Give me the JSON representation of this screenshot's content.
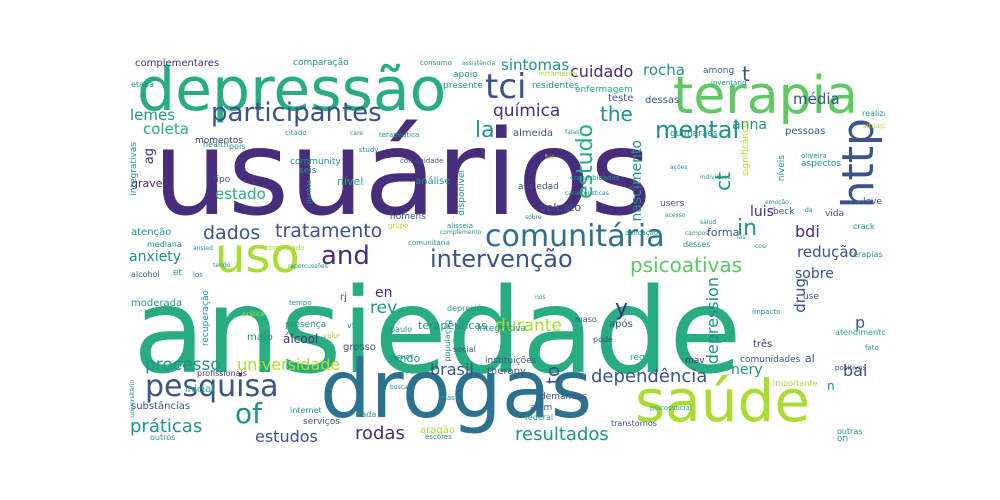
{
  "colors": {
    "dark_purple": "#472d7b",
    "navy": "#3b528b",
    "blue": "#2c728e",
    "teal": "#21918c",
    "green": "#27ad81",
    "light_green": "#5ec962",
    "lime": "#aadc32",
    "yellow": "#fde725"
  },
  "words": [
    {
      "text": "usuários",
      "color": "dark_purple",
      "vertical": false
    },
    {
      "text": "ansiedade",
      "color": "green",
      "vertical": false
    },
    {
      "text": "drogas",
      "color": "blue",
      "vertical": false
    },
    {
      "text": "depressão",
      "color": "green",
      "vertical": false
    },
    {
      "text": "terapia",
      "color": "light_green",
      "vertical": false
    },
    {
      "text": "saúde",
      "color": "lime",
      "vertical": false
    },
    {
      "text": "uso",
      "color": "lime",
      "vertical": false
    },
    {
      "text": "http",
      "color": "navy",
      "vertical": true
    },
    {
      "text": "comunitária",
      "color": "blue",
      "vertical": false
    },
    {
      "text": "participantes",
      "color": "navy",
      "vertical": false
    },
    {
      "text": "pesquisa",
      "color": "navy",
      "vertical": false
    },
    {
      "text": "tci",
      "color": "navy",
      "vertical": false
    },
    {
      "text": "and",
      "color": "dark_purple",
      "vertical": false
    },
    {
      "text": "mental",
      "color": "teal",
      "vertical": false
    },
    {
      "text": "intervenção",
      "color": "navy",
      "vertical": false
    },
    {
      "text": "psicoativas",
      "color": "light_green",
      "vertical": false
    },
    {
      "text": "of",
      "color": "teal",
      "vertical": false
    },
    {
      "text": "tratamento",
      "color": "navy",
      "vertical": false
    },
    {
      "text": "dados",
      "color": "navy",
      "vertical": false
    },
    {
      "text": "dependência",
      "color": "navy",
      "vertical": false
    },
    {
      "text": "processo",
      "color": "teal",
      "vertical": false
    },
    {
      "text": "universidade",
      "color": "lime",
      "vertical": false
    },
    {
      "text": "práticas",
      "color": "teal",
      "vertical": false
    },
    {
      "text": "rodas",
      "color": "dark_purple",
      "vertical": false
    },
    {
      "text": "resultados",
      "color": "teal",
      "vertical": false
    },
    {
      "text": "estudos",
      "color": "navy",
      "vertical": false
    },
    {
      "text": "brasil",
      "color": "navy",
      "vertical": false
    },
    {
      "text": "rev",
      "color": "teal",
      "vertical": false
    },
    {
      "text": "en",
      "color": "dark_purple",
      "vertical": false
    },
    {
      "text": "the",
      "color": "teal",
      "vertical": false
    },
    {
      "text": "la",
      "color": "teal",
      "vertical": false
    },
    {
      "text": "in",
      "color": "teal",
      "vertical": false
    },
    {
      "text": "ct",
      "color": "teal",
      "vertical": true
    },
    {
      "text": "estudo",
      "color": "green",
      "vertical": true
    },
    {
      "text": "química",
      "color": "dark_purple",
      "vertical": false
    },
    {
      "text": "cuidado",
      "color": "dark_purple",
      "vertical": false
    },
    {
      "text": "rocha",
      "color": "teal",
      "vertical": false
    },
    {
      "text": "sintomas",
      "color": "teal",
      "vertical": false
    },
    {
      "text": "t",
      "color": "navy",
      "vertical": false
    },
    {
      "text": "média",
      "color": "navy",
      "vertical": false
    },
    {
      "text": "anna",
      "color": "teal",
      "vertical": false
    },
    {
      "text": "coleta",
      "color": "green",
      "vertical": false
    },
    {
      "text": "lemes",
      "color": "teal",
      "vertical": false
    },
    {
      "text": "estado",
      "color": "green",
      "vertical": false
    },
    {
      "text": "anxiety",
      "color": "teal",
      "vertical": false
    },
    {
      "text": "bdi",
      "color": "dark_purple",
      "vertical": false
    },
    {
      "text": "redução",
      "color": "navy",
      "vertical": false
    },
    {
      "text": "sobre",
      "color": "navy",
      "vertical": false
    },
    {
      "text": "bai",
      "color": "navy",
      "vertical": false
    },
    {
      "text": "nery",
      "color": "teal",
      "vertical": false
    },
    {
      "text": "durante",
      "color": "lime",
      "vertical": false
    },
    {
      "text": "to",
      "color": "navy",
      "vertical": true
    },
    {
      "text": "y",
      "color": "dark_purple",
      "vertical": false
    },
    {
      "text": "p",
      "color": "navy",
      "vertical": false
    },
    {
      "text": "drug",
      "color": "navy",
      "vertical": true
    },
    {
      "text": "depression",
      "color": "teal",
      "vertical": true
    },
    {
      "text": "nascimento",
      "color": "teal",
      "vertical": true
    },
    {
      "text": "luis",
      "color": "dark_purple",
      "vertical": false
    },
    {
      "text": "volpato",
      "color": "navy",
      "vertical": false
    },
    {
      "text": "grave",
      "color": "dark_purple",
      "vertical": false
    },
    {
      "text": "ag",
      "color": "dark_purple",
      "vertical": true
    },
    {
      "text": "complementares",
      "color": "dark_purple",
      "vertical": false
    },
    {
      "text": "comparação",
      "color": "teal",
      "vertical": false
    },
    {
      "text": "momentos",
      "color": "dark_purple",
      "vertical": false
    },
    {
      "text": "análise",
      "color": "teal",
      "vertical": false
    },
    {
      "text": "almeida",
      "color": "navy",
      "vertical": false
    },
    {
      "text": "guimarães",
      "color": "teal",
      "vertical": false
    },
    {
      "text": "pessoas",
      "color": "navy",
      "vertical": false
    },
    {
      "text": "três",
      "color": "dark_purple",
      "vertical": false
    },
    {
      "text": "após",
      "color": "navy",
      "vertical": false
    },
    {
      "text": "sendo",
      "color": "teal",
      "vertical": false
    },
    {
      "text": "álcool",
      "color": "dark_purple",
      "vertical": false
    },
    {
      "text": "atenção",
      "color": "teal",
      "vertical": false
    },
    {
      "text": "moderada",
      "color": "teal",
      "vertical": false
    },
    {
      "text": "substâncias",
      "color": "navy",
      "vertical": false
    },
    {
      "text": "inicial",
      "color": "green",
      "vertical": false
    },
    {
      "text": "serviços",
      "color": "navy",
      "vertical": false
    },
    {
      "text": "terapêuticas",
      "color": "teal",
      "vertical": false
    },
    {
      "text": "integrativa",
      "color": "teal",
      "vertical": false
    },
    {
      "text": "therapy",
      "color": "navy",
      "vertical": false
    },
    {
      "text": "aragão",
      "color": "lime",
      "vertical": false
    },
    {
      "text": "grosso",
      "color": "navy",
      "vertical": false
    },
    {
      "text": "mato",
      "color": "teal",
      "vertical": false
    },
    {
      "text": "comunidades",
      "color": "navy",
      "vertical": false
    },
    {
      "text": "al",
      "color": "navy",
      "vertical": false
    },
    {
      "text": "forma",
      "color": "navy",
      "vertical": false
    },
    {
      "text": "nível",
      "color": "green",
      "vertical": false
    },
    {
      "text": "ansiedad",
      "color": "navy",
      "vertical": false
    },
    {
      "text": "users",
      "color": "navy",
      "vertical": false
    },
    {
      "text": "homens",
      "color": "navy",
      "vertical": false
    },
    {
      "text": "community",
      "color": "teal",
      "vertical": false
    },
    {
      "text": "teste",
      "color": "navy",
      "vertical": false
    },
    {
      "text": "dessas",
      "color": "navy",
      "vertical": false
    },
    {
      "text": "among",
      "color": "navy",
      "vertical": false
    },
    {
      "text": "residentes",
      "color": "teal",
      "vertical": false
    },
    {
      "text": "presente",
      "color": "teal",
      "vertical": false
    },
    {
      "text": "apoio",
      "color": "teal",
      "vertical": false
    },
    {
      "text": "enfermagem",
      "color": "green",
      "vertical": false
    },
    {
      "text": "seis",
      "color": "teal",
      "vertical": false
    },
    {
      "text": "tipo",
      "color": "navy",
      "vertical": false
    },
    {
      "text": "pois",
      "color": "teal",
      "vertical": false
    },
    {
      "text": "health",
      "color": "teal",
      "vertical": false
    },
    {
      "text": "integrativas",
      "color": "teal",
      "vertical": true
    },
    {
      "text": "etapa",
      "color": "teal",
      "vertical": false
    },
    {
      "text": "et",
      "color": "teal",
      "vertical": false
    },
    {
      "text": "alcohol",
      "color": "navy",
      "vertical": false
    },
    {
      "text": "mediana",
      "color": "teal",
      "vertical": false
    },
    {
      "text": "recuperação",
      "color": "teal",
      "vertical": true
    },
    {
      "text": "rj",
      "color": "navy",
      "vertical": false
    },
    {
      "text": "vf",
      "color": "teal",
      "vertical": false
    },
    {
      "text": "presença",
      "color": "teal",
      "vertical": false
    },
    {
      "text": "mav",
      "color": "dark_purple",
      "vertical": false
    },
    {
      "text": "região",
      "color": "green",
      "vertical": false
    },
    {
      "text": "demandas",
      "color": "navy",
      "vertical": false
    },
    {
      "text": "instituições",
      "color": "navy",
      "vertical": false
    },
    {
      "text": "além",
      "color": "navy",
      "vertical": false
    },
    {
      "text": "federal",
      "color": "teal",
      "vertical": false
    },
    {
      "text": "transtornos",
      "color": "navy",
      "vertical": false
    },
    {
      "text": "cada",
      "color": "teal",
      "vertical": false
    },
    {
      "text": "internet",
      "color": "teal",
      "vertical": false
    },
    {
      "text": "outros",
      "color": "teal",
      "vertical": false
    },
    {
      "text": "profissionais",
      "color": "dark_purple",
      "vertical": false
    },
    {
      "text": "social",
      "color": "navy",
      "vertical": false
    },
    {
      "text": "pode",
      "color": "navy",
      "vertical": false
    },
    {
      "text": "maso",
      "color": "navy",
      "vertical": false
    },
    {
      "text": "atendimento",
      "color": "green",
      "vertical": false
    },
    {
      "text": "importante",
      "color": "lime",
      "vertical": false
    },
    {
      "text": "outras",
      "color": "teal",
      "vertical": false
    },
    {
      "text": "n",
      "color": "teal",
      "vertical": false
    },
    {
      "text": "on",
      "color": "teal",
      "vertical": false
    },
    {
      "text": "leve",
      "color": "navy",
      "vertical": false
    },
    {
      "text": "beck",
      "color": "navy",
      "vertical": false
    },
    {
      "text": "vida",
      "color": "navy",
      "vertical": false
    },
    {
      "text": "crack",
      "color": "teal",
      "vertical": false
    },
    {
      "text": "terapias",
      "color": "teal",
      "vertical": false
    },
    {
      "text": "desses",
      "color": "teal",
      "vertical": false
    },
    {
      "text": "use",
      "color": "navy",
      "vertical": false
    },
    {
      "text": "aspectos",
      "color": "teal",
      "vertical": false
    },
    {
      "text": "níveis",
      "color": "teal",
      "vertical": true
    },
    {
      "text": "significância",
      "color": "lime",
      "vertical": true
    },
    {
      "text": "realizado",
      "color": "teal",
      "vertical": false
    },
    {
      "text": "inventário",
      "color": "teal",
      "vertical": false
    },
    {
      "text": "situação",
      "color": "lime",
      "vertical": false
    },
    {
      "text": "consumo",
      "color": "teal",
      "vertical": false
    },
    {
      "text": "assistência",
      "color": "teal",
      "vertical": false
    },
    {
      "text": "depresión",
      "color": "teal",
      "vertical": false
    },
    {
      "text": "impacto",
      "color": "teal",
      "vertical": false
    },
    {
      "text": "fato",
      "color": "teal",
      "vertical": false
    },
    {
      "text": "positivos",
      "color": "navy",
      "vertical": false
    },
    {
      "text": "aplicação",
      "color": "teal",
      "vertical": false
    },
    {
      "text": "oliveira",
      "color": "teal",
      "vertical": false
    },
    {
      "text": "comorbidades",
      "color": "teal",
      "vertical": false
    },
    {
      "text": "características",
      "color": "teal",
      "vertical": false
    },
    {
      "text": "comunidade",
      "color": "navy",
      "vertical": false
    },
    {
      "text": "disponível",
      "color": "teal",
      "vertical": true
    },
    {
      "text": "citado",
      "color": "teal",
      "vertical": false
    },
    {
      "text": "terapêutica",
      "color": "teal",
      "vertical": false
    },
    {
      "text": "study",
      "color": "teal",
      "vertical": false
    },
    {
      "text": "comunitaria",
      "color": "teal",
      "vertical": false
    },
    {
      "text": "paulo",
      "color": "teal",
      "vertical": false
    },
    {
      "text": "população",
      "color": "teal",
      "vertical": true
    },
    {
      "text": "psicossocial",
      "color": "green",
      "vertical": false
    },
    {
      "text": "escores",
      "color": "teal",
      "vertical": false
    },
    {
      "text": "universitário",
      "color": "teal",
      "vertical": true
    },
    {
      "text": "tempo",
      "color": "teal",
      "vertical": false
    },
    {
      "text": "prática",
      "color": "lime",
      "vertical": false
    },
    {
      "text": "valor",
      "color": "lime",
      "vertical": false
    },
    {
      "text": "repercussões",
      "color": "teal",
      "vertical": false
    },
    {
      "text": "ferramenta",
      "color": "lime",
      "vertical": false
    },
    {
      "text": "indivíduos",
      "color": "teal",
      "vertical": false
    },
    {
      "text": "ações",
      "color": "teal",
      "vertical": false
    },
    {
      "text": "campos",
      "color": "teal",
      "vertical": false
    },
    {
      "text": "acesso",
      "color": "teal",
      "vertical": false
    },
    {
      "text": "care",
      "color": "teal",
      "vertical": false
    },
    {
      "text": "pontos",
      "color": "teal",
      "vertical": true
    },
    {
      "text": "grupo",
      "color": "lime",
      "vertical": false
    },
    {
      "text": "sobre",
      "color": "teal",
      "vertical": false
    },
    {
      "text": "alisseia",
      "color": "teal",
      "vertical": false
    },
    {
      "text": "complemento",
      "color": "teal",
      "vertical": false
    },
    {
      "text": "assim",
      "color": "teal",
      "vertical": false
    },
    {
      "text": "mas",
      "color": "teal",
      "vertical": false
    },
    {
      "text": "busca",
      "color": "teal",
      "vertical": false
    },
    {
      "text": "salud",
      "color": "teal",
      "vertical": false
    },
    {
      "text": "tendo",
      "color": "teal",
      "vertical": false
    },
    {
      "text": "los",
      "color": "teal",
      "vertical": false
    },
    {
      "text": "ansied",
      "color": "teal",
      "vertical": false
    },
    {
      "text": "nos",
      "color": "teal",
      "vertical": false
    },
    {
      "text": "comparado",
      "color": "lime",
      "vertical": false
    },
    {
      "text": "falas",
      "color": "teal",
      "vertical": false
    },
    {
      "text": "cosi",
      "color": "teal",
      "vertical": false
    },
    {
      "text": "da",
      "color": "teal",
      "vertical": false
    },
    {
      "text": "emoção",
      "color": "teal",
      "vertical": false
    },
    {
      "text": "las",
      "color": "teal",
      "vertical": false
    },
    {
      "text": "fue",
      "color": "lime",
      "vertical": false
    }
  ]
}
